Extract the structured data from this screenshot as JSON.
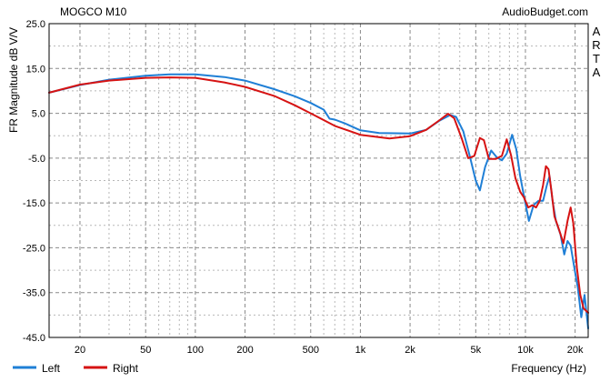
{
  "chart_data": {
    "type": "line",
    "title": "MOGCO M10",
    "source": "AudioBudget.com",
    "side_label": [
      "A",
      "R",
      "T",
      "A"
    ],
    "ylabel": "FR Magnitude dB V/V",
    "xlabel": "Frequency (Hz)",
    "x_scale": "log",
    "xlim": [
      13,
      24000
    ],
    "ylim": [
      -45,
      25
    ],
    "y_ticks": [
      "25.0",
      "15.0",
      "5.0",
      "-5.0",
      "-15.0",
      "-25.0",
      "-35.0",
      "-45.0"
    ],
    "x_ticks": [
      {
        "value": 20,
        "label": "20"
      },
      {
        "value": 50,
        "label": "50"
      },
      {
        "value": 100,
        "label": "100"
      },
      {
        "value": 200,
        "label": "200"
      },
      {
        "value": 500,
        "label": "500"
      },
      {
        "value": 1000,
        "label": "1k"
      },
      {
        "value": 2000,
        "label": "2k"
      },
      {
        "value": 5000,
        "label": "5k"
      },
      {
        "value": 10000,
        "label": "10k"
      },
      {
        "value": 20000,
        "label": "20k"
      }
    ],
    "grid": true,
    "legend_position": "bottom-left",
    "series": [
      {
        "name": "Left",
        "color": "#1f7fd6",
        "points": [
          [
            13,
            9.6
          ],
          [
            20,
            11.3
          ],
          [
            30,
            12.5
          ],
          [
            50,
            13.4
          ],
          [
            70,
            13.7
          ],
          [
            100,
            13.7
          ],
          [
            150,
            13.1
          ],
          [
            200,
            12.3
          ],
          [
            300,
            10.4
          ],
          [
            400,
            8.8
          ],
          [
            500,
            7.3
          ],
          [
            600,
            5.8
          ],
          [
            650,
            3.8
          ],
          [
            700,
            3.6
          ],
          [
            800,
            2.8
          ],
          [
            1000,
            1.2
          ],
          [
            1300,
            0.6
          ],
          [
            2000,
            0.5
          ],
          [
            2500,
            1.3
          ],
          [
            3000,
            3.3
          ],
          [
            3500,
            4.6
          ],
          [
            3800,
            4.2
          ],
          [
            4200,
            1.0
          ],
          [
            4600,
            -4.5
          ],
          [
            5000,
            -10.0
          ],
          [
            5300,
            -12.2
          ],
          [
            5700,
            -7.0
          ],
          [
            6200,
            -3.3
          ],
          [
            6700,
            -4.8
          ],
          [
            7200,
            -5.5
          ],
          [
            7700,
            -4.0
          ],
          [
            8300,
            0.2
          ],
          [
            8800,
            -3.0
          ],
          [
            9300,
            -9.0
          ],
          [
            9800,
            -13.5
          ],
          [
            10500,
            -19.0
          ],
          [
            11200,
            -15.5
          ],
          [
            12000,
            -14.5
          ],
          [
            12800,
            -14.5
          ],
          [
            13500,
            -11.0
          ],
          [
            14000,
            -9.0
          ],
          [
            14600,
            -14.5
          ],
          [
            15300,
            -19.0
          ],
          [
            16300,
            -22.0
          ],
          [
            17200,
            -26.5
          ],
          [
            18000,
            -23.5
          ],
          [
            18800,
            -24.5
          ],
          [
            19800,
            -29.5
          ],
          [
            20800,
            -34.0
          ],
          [
            21800,
            -40.5
          ],
          [
            22800,
            -35.5
          ],
          [
            24000,
            -43.0
          ]
        ]
      },
      {
        "name": "Right",
        "color": "#d61313",
        "points": [
          [
            13,
            9.6
          ],
          [
            20,
            11.4
          ],
          [
            30,
            12.3
          ],
          [
            50,
            12.9
          ],
          [
            70,
            13.0
          ],
          [
            100,
            12.9
          ],
          [
            150,
            11.9
          ],
          [
            200,
            10.9
          ],
          [
            300,
            8.9
          ],
          [
            400,
            6.8
          ],
          [
            500,
            5.0
          ],
          [
            700,
            2.2
          ],
          [
            1000,
            0.2
          ],
          [
            1500,
            -0.6
          ],
          [
            2000,
            -0.1
          ],
          [
            2500,
            1.3
          ],
          [
            3000,
            3.4
          ],
          [
            3400,
            4.9
          ],
          [
            3700,
            3.9
          ],
          [
            4100,
            -0.5
          ],
          [
            4500,
            -5.0
          ],
          [
            4900,
            -4.5
          ],
          [
            5300,
            -0.5
          ],
          [
            5600,
            -1.0
          ],
          [
            6000,
            -5.2
          ],
          [
            6600,
            -5.2
          ],
          [
            7200,
            -4.5
          ],
          [
            7700,
            -0.8
          ],
          [
            8200,
            -4.5
          ],
          [
            8700,
            -9.5
          ],
          [
            9300,
            -12.5
          ],
          [
            9800,
            -13.8
          ],
          [
            10400,
            -16.0
          ],
          [
            11000,
            -15.5
          ],
          [
            11600,
            -16.0
          ],
          [
            12200,
            -14.5
          ],
          [
            12800,
            -11.0
          ],
          [
            13300,
            -6.8
          ],
          [
            13800,
            -7.5
          ],
          [
            14400,
            -12.5
          ],
          [
            15000,
            -18.0
          ],
          [
            16000,
            -21.0
          ],
          [
            17000,
            -24.0
          ],
          [
            18000,
            -19.0
          ],
          [
            18800,
            -16.0
          ],
          [
            19500,
            -19.5
          ],
          [
            20500,
            -29.5
          ],
          [
            21500,
            -35.5
          ],
          [
            22500,
            -38.5
          ],
          [
            24000,
            -39.5
          ]
        ]
      }
    ]
  }
}
